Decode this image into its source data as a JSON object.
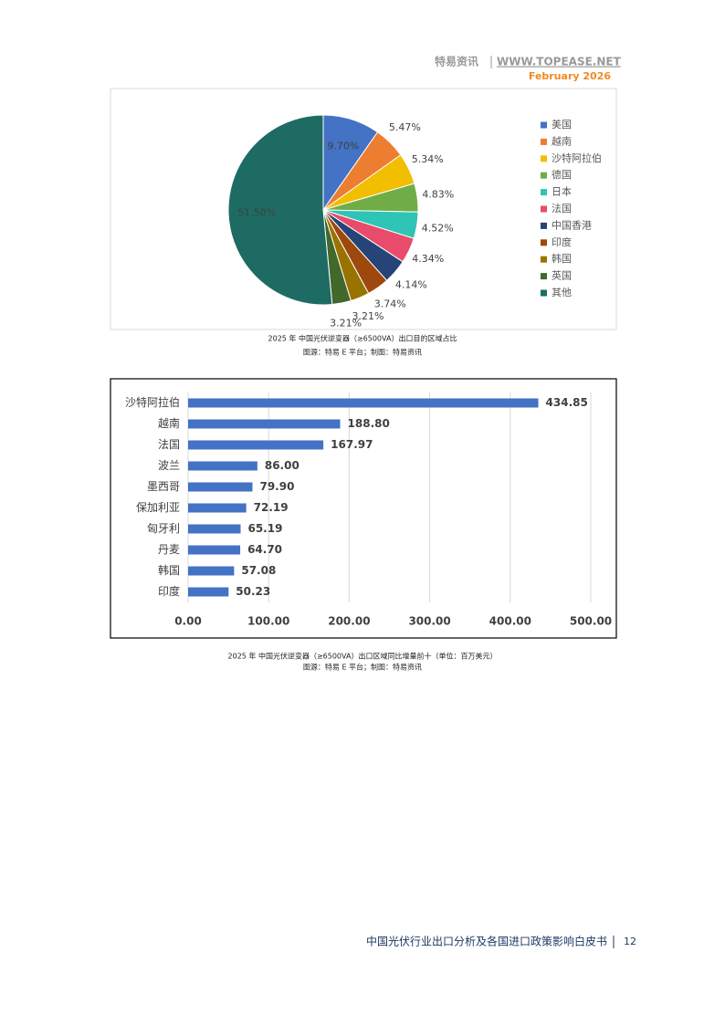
{
  "header": {
    "brand": "特易资讯",
    "site": "WWW.TOPEASE.NET",
    "date": "February 2026"
  },
  "chart_data": [
    {
      "type": "pie",
      "categories": [
        "美国",
        "越南",
        "沙特阿拉伯",
        "德国",
        "日本",
        "法国",
        "中国香港",
        "印度",
        "韩国",
        "英国",
        "其他"
      ],
      "values": [
        9.7,
        5.47,
        5.34,
        4.83,
        4.52,
        4.34,
        4.14,
        3.74,
        3.21,
        3.21,
        51.5
      ],
      "value_labels": [
        "9.70%",
        "5.47%",
        "5.34%",
        "4.83%",
        "4.52%",
        "4.34%",
        "4.14%",
        "3.74%",
        "3.21%",
        "3.21%",
        "51.50%"
      ],
      "colors": [
        "#4472c4",
        "#ed7d31",
        "#f2be00",
        "#70ad47",
        "#2ec4b6",
        "#e84c6a",
        "#264478",
        "#9e480e",
        "#997300",
        "#43682b",
        "#1e6b64"
      ],
      "legend": "right",
      "caption": "2025 年 中国光伏逆变器（≥6500VA）出口目的区域占比",
      "source": "图源：特易 E 平台；制图：特易资讯"
    },
    {
      "type": "hbar",
      "categories": [
        "沙特阿拉伯",
        "越南",
        "法国",
        "波兰",
        "墨西哥",
        "保加利亚",
        "匈牙利",
        "丹麦",
        "韩国",
        "印度"
      ],
      "values": [
        434.85,
        188.8,
        167.97,
        86,
        79.9,
        72.19,
        65.19,
        64.7,
        57.08,
        50.23
      ],
      "value_labels": [
        "434.85",
        "188.80",
        "167.97",
        "86.00",
        "79.90",
        "72.19",
        "65.19",
        "64.70",
        "57.08",
        "50.23"
      ],
      "color": "#4472c4",
      "xlim": [
        0,
        500
      ],
      "xticks": [
        {
          "value": 0,
          "label": "0.00"
        },
        {
          "value": 100,
          "label": "100.00"
        },
        {
          "value": 200,
          "label": "200.00"
        },
        {
          "value": 300,
          "label": "300.00"
        },
        {
          "value": 400,
          "label": "400.00"
        },
        {
          "value": 500,
          "label": "500.00"
        }
      ],
      "grid": true,
      "caption": "2025 年 中国光伏逆变器（≥6500VA）出口区域同比增量前十（单位：百万美元）",
      "source": "图源：特易 E 平台；制图：特易资讯"
    }
  ],
  "footer": {
    "title": "中国光伏行业出口分析及各国进口政策影响白皮书",
    "page": "12"
  }
}
